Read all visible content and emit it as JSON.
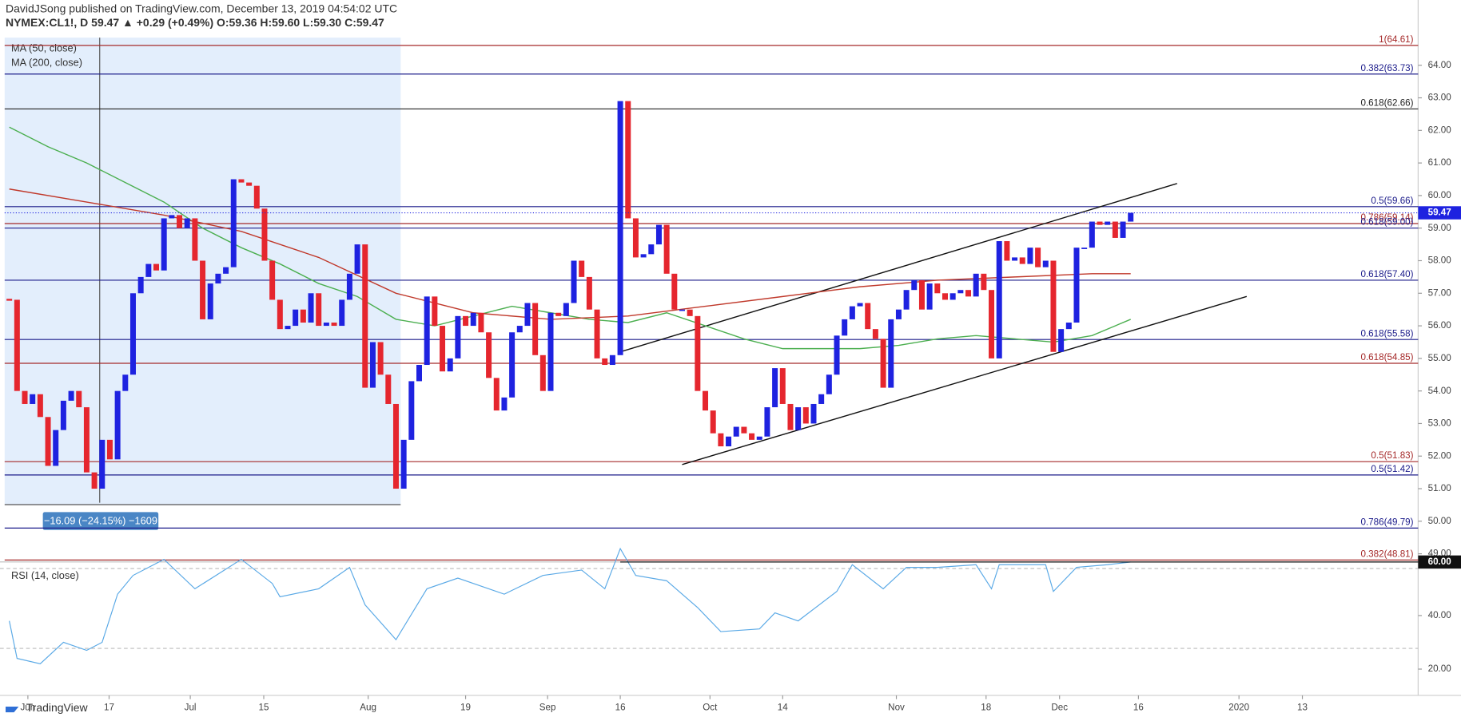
{
  "chart_data": {
    "type": "candlestick",
    "header": "DavidJSong published on TradingView.com, December 13, 2019 04:54:02 UTC",
    "symbol_line": "NYMEX:CL1!, D 59.47 ▲ +0.29 (+0.49%) O:59.36 H:59.60 L:59.30 C:59.47",
    "brand": "TradingView",
    "up_color": "#1e22e0",
    "down_color": "#e5262e",
    "close": [
      56.8,
      54.0,
      53.6,
      53.9,
      53.2,
      51.7,
      52.8,
      53.7,
      54.0,
      53.5,
      51.5,
      51.0,
      52.5,
      51.9,
      54.0,
      54.5,
      57.0,
      57.5,
      57.9,
      57.7,
      59.3,
      59.4,
      59.0,
      59.3,
      58.0,
      56.2,
      57.3,
      57.6,
      57.8,
      60.5,
      60.4,
      60.3,
      59.6,
      58.0,
      56.8,
      55.9,
      56.0,
      56.5,
      56.1,
      57.0,
      56.0,
      56.1,
      56.0,
      56.8,
      57.6,
      58.5,
      54.1,
      55.5,
      54.5,
      53.6,
      51.0,
      52.5,
      54.3,
      54.8,
      56.9,
      56.0,
      54.6,
      55.0,
      56.3,
      56.0,
      56.4,
      55.8,
      54.4,
      53.4,
      53.8,
      55.8,
      56.0,
      56.7,
      55.1,
      54.0,
      56.4,
      56.3,
      56.7,
      58.0,
      57.5,
      56.5,
      55.0,
      54.8,
      55.1,
      62.9,
      59.3,
      58.1,
      58.2,
      58.5,
      59.1,
      57.6,
      56.5,
      56.5,
      56.3,
      54.0,
      53.4,
      52.7,
      52.3,
      52.6,
      52.9,
      52.7,
      52.5,
      52.6,
      53.5,
      54.7,
      53.6,
      52.8,
      53.5,
      53.0,
      53.6,
      53.9,
      54.5,
      55.7,
      56.2,
      56.6,
      56.7,
      55.9,
      55.6,
      54.1,
      56.2,
      56.5,
      57.1,
      57.4,
      56.5,
      57.3,
      57.0,
      56.8,
      57.0,
      57.1,
      56.9,
      57.6,
      57.1,
      55.0,
      58.6,
      58.0,
      58.1,
      57.9,
      58.4,
      57.8,
      58.0,
      55.2,
      55.9,
      56.1,
      58.4,
      58.4,
      59.2,
      59.1,
      59.2,
      58.7,
      59.2,
      59.47
    ],
    "last_price": {
      "value": 59.47,
      "label": "59.47"
    },
    "series": [
      {
        "name": "MA (50, close)",
        "color": "#4caf50",
        "x": [
          0,
          5,
          10,
          15,
          20,
          25,
          30,
          35,
          40,
          45,
          50,
          55,
          60,
          65,
          70,
          75,
          80,
          85,
          90,
          95,
          100,
          105,
          110,
          115,
          120,
          125,
          130,
          135,
          140,
          145
        ],
        "values": [
          62.1,
          61.5,
          61.0,
          60.4,
          59.8,
          59.0,
          58.4,
          57.9,
          57.3,
          56.9,
          56.2,
          56.0,
          56.3,
          56.6,
          56.4,
          56.2,
          56.1,
          56.4,
          56.0,
          55.6,
          55.3,
          55.3,
          55.3,
          55.4,
          55.6,
          55.7,
          55.6,
          55.5,
          55.7,
          56.2
        ]
      },
      {
        "name": "MA (200, close)",
        "color": "#c0392b",
        "x": [
          0,
          10,
          20,
          30,
          40,
          50,
          60,
          70,
          80,
          90,
          100,
          110,
          120,
          130,
          140,
          145
        ],
        "values": [
          60.2,
          59.8,
          59.4,
          58.9,
          58.1,
          57.0,
          56.4,
          56.2,
          56.3,
          56.6,
          56.9,
          57.2,
          57.4,
          57.5,
          57.6,
          57.6
        ]
      }
    ],
    "ylim": [
      48.75,
      64.85
    ],
    "yticks": [
      {
        "value": 49,
        "label": "49.00"
      },
      {
        "value": 50,
        "label": "50.00"
      },
      {
        "value": 51,
        "label": "51.00"
      },
      {
        "value": 52,
        "label": "52.00"
      },
      {
        "value": 53,
        "label": "53.00"
      },
      {
        "value": 54,
        "label": "54.00"
      },
      {
        "value": 55,
        "label": "55.00"
      },
      {
        "value": 56,
        "label": "56.00"
      },
      {
        "value": 57,
        "label": "57.00"
      },
      {
        "value": 58,
        "label": "58.00"
      },
      {
        "value": 59,
        "label": "59.00"
      },
      {
        "value": 60,
        "label": "60.00"
      },
      {
        "value": 61,
        "label": "61.00"
      },
      {
        "value": 62,
        "label": "62.00"
      },
      {
        "value": 63,
        "label": "63.00"
      },
      {
        "value": 64,
        "label": "64.00"
      }
    ],
    "xticks": [
      {
        "value": 2.4,
        "label": "Jun"
      },
      {
        "value": 12.9,
        "label": "17"
      },
      {
        "value": 23.4,
        "label": "Jul"
      },
      {
        "value": 32.9,
        "label": "15"
      },
      {
        "value": 46.4,
        "label": "Aug"
      },
      {
        "value": 59,
        "label": "19"
      },
      {
        "value": 69.6,
        "label": "Sep"
      },
      {
        "value": 79,
        "label": "16"
      },
      {
        "value": 90.6,
        "label": "Oct"
      },
      {
        "value": 100,
        "label": "14"
      },
      {
        "value": 114.7,
        "label": "Nov"
      },
      {
        "value": 126.3,
        "label": "18"
      },
      {
        "value": 135.8,
        "label": "Dec"
      },
      {
        "value": 146,
        "label": "16"
      },
      {
        "value": 159,
        "label": "2020"
      },
      {
        "value": 167.2,
        "label": "13"
      }
    ],
    "levels": [
      {
        "label": "1(64.61)",
        "value": 64.61,
        "color": "#a52a2a"
      },
      {
        "label": "0.382(63.73)",
        "value": 63.73,
        "color": "#1b1b8a"
      },
      {
        "label": "0.618(62.66)",
        "value": 62.66,
        "color": "#222222"
      },
      {
        "label": "0.5(59.66)",
        "value": 59.66,
        "color": "#1b1b8a"
      },
      {
        "label": "0.786(59.14)",
        "value": 59.14,
        "color": "#a52a2a"
      },
      {
        "label": "0.618(59.00)",
        "value": 59.0,
        "color": "#1b1b8a"
      },
      {
        "label": "0.618(57.40)",
        "value": 57.4,
        "color": "#1b1b8a"
      },
      {
        "label": "0.618(55.58)",
        "value": 55.58,
        "color": "#1b1b8a"
      },
      {
        "label": "0.618(54.85)",
        "value": 54.85,
        "color": "#a52a2a"
      },
      {
        "label": "0.5(51.83)",
        "value": 51.83,
        "color": "#a52a2a"
      },
      {
        "label": "0.5(51.42)",
        "value": 51.42,
        "color": "#1b1b8a"
      },
      {
        "label": "0.786(49.79)",
        "value": 49.79,
        "color": "#1b1b8a"
      },
      {
        "label": "0.382(48.81)",
        "value": 48.81,
        "color": "#a52a2a"
      }
    ],
    "trendlines": [
      {
        "x": [
          79,
          151
        ],
        "values": [
          55.2,
          60.37
        ]
      },
      {
        "x": [
          87,
          160
        ],
        "values": [
          51.74,
          56.9
        ]
      }
    ],
    "measure_label": "−16.09 (−24.15%) −1609",
    "rsi": {
      "name": "RSI (14, close)",
      "color": "#5aa9e6",
      "x": [
        0,
        1,
        4,
        7,
        10,
        12,
        14,
        16,
        20,
        24,
        30,
        34,
        35,
        40,
        44,
        46,
        50,
        54,
        58,
        64,
        69,
        74,
        77,
        79,
        81,
        85,
        89,
        92,
        97,
        99,
        102,
        107,
        109,
        113,
        116,
        120,
        125,
        127,
        128,
        134,
        135,
        138,
        142,
        145
      ],
      "values": [
        38,
        24,
        22,
        30,
        27,
        30,
        48,
        55,
        61,
        50,
        61,
        52,
        47,
        50,
        58,
        44,
        31,
        50,
        54,
        48,
        55,
        57,
        50,
        65,
        55,
        53,
        43,
        34,
        35,
        41,
        38,
        49,
        59,
        50,
        58,
        58,
        59,
        50,
        59,
        59,
        49,
        58,
        59,
        60
      ],
      "ylim": [
        17.2,
        68.1
      ],
      "yticks": [
        {
          "value": 20,
          "label": "20.00"
        },
        {
          "value": 40,
          "label": "40.00"
        }
      ],
      "level": {
        "value": 60,
        "label": "60.00",
        "x": [
          79,
          145
        ]
      }
    }
  }
}
